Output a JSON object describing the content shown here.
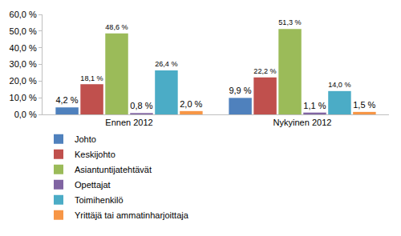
{
  "chart_data": {
    "type": "bar",
    "categories": [
      "Ennen 2012",
      "Nykyinen 2012"
    ],
    "series": [
      {
        "name": "Johto",
        "color": "#4f81bd",
        "values": [
          4.2,
          9.9
        ],
        "value_labels": [
          "4,2 %",
          "9,9 %"
        ]
      },
      {
        "name": "Keskijohto",
        "color": "#c0504d",
        "values": [
          18.1,
          22.2
        ],
        "value_labels": [
          "18,1 %",
          "22,2 %"
        ]
      },
      {
        "name": "Asiantuntijatehtävät",
        "color": "#9bbb59",
        "values": [
          48.6,
          51.3
        ],
        "value_labels": [
          "48,6 %",
          "51,3 %"
        ]
      },
      {
        "name": "Opettajat",
        "color": "#8064a2",
        "values": [
          0.8,
          1.1
        ],
        "value_labels": [
          "0,8 %",
          "1,1 %"
        ]
      },
      {
        "name": "Toimihenkilö",
        "color": "#4bacc6",
        "values": [
          26.4,
          14.0
        ],
        "value_labels": [
          "26,4 %",
          "14,0 %"
        ]
      },
      {
        "name": "Yrittäjä tai ammatinharjoittaja",
        "color": "#f79646",
        "values": [
          2.0,
          1.5
        ],
        "value_labels": [
          "2,0 %",
          "1,5 %"
        ]
      }
    ],
    "ylim": [
      0,
      60
    ],
    "yticks": [
      {
        "value": 0,
        "label": "0,0 %"
      },
      {
        "value": 10,
        "label": "10,0 %"
      },
      {
        "value": 20,
        "label": "20,0 %"
      },
      {
        "value": 30,
        "label": "30,0 %"
      },
      {
        "value": 40,
        "label": "40,0 %"
      },
      {
        "value": 50,
        "label": "50,0 %"
      },
      {
        "value": 60,
        "label": "60,0 %"
      }
    ],
    "grid": false,
    "legend": "bottom",
    "data_labels": true
  }
}
